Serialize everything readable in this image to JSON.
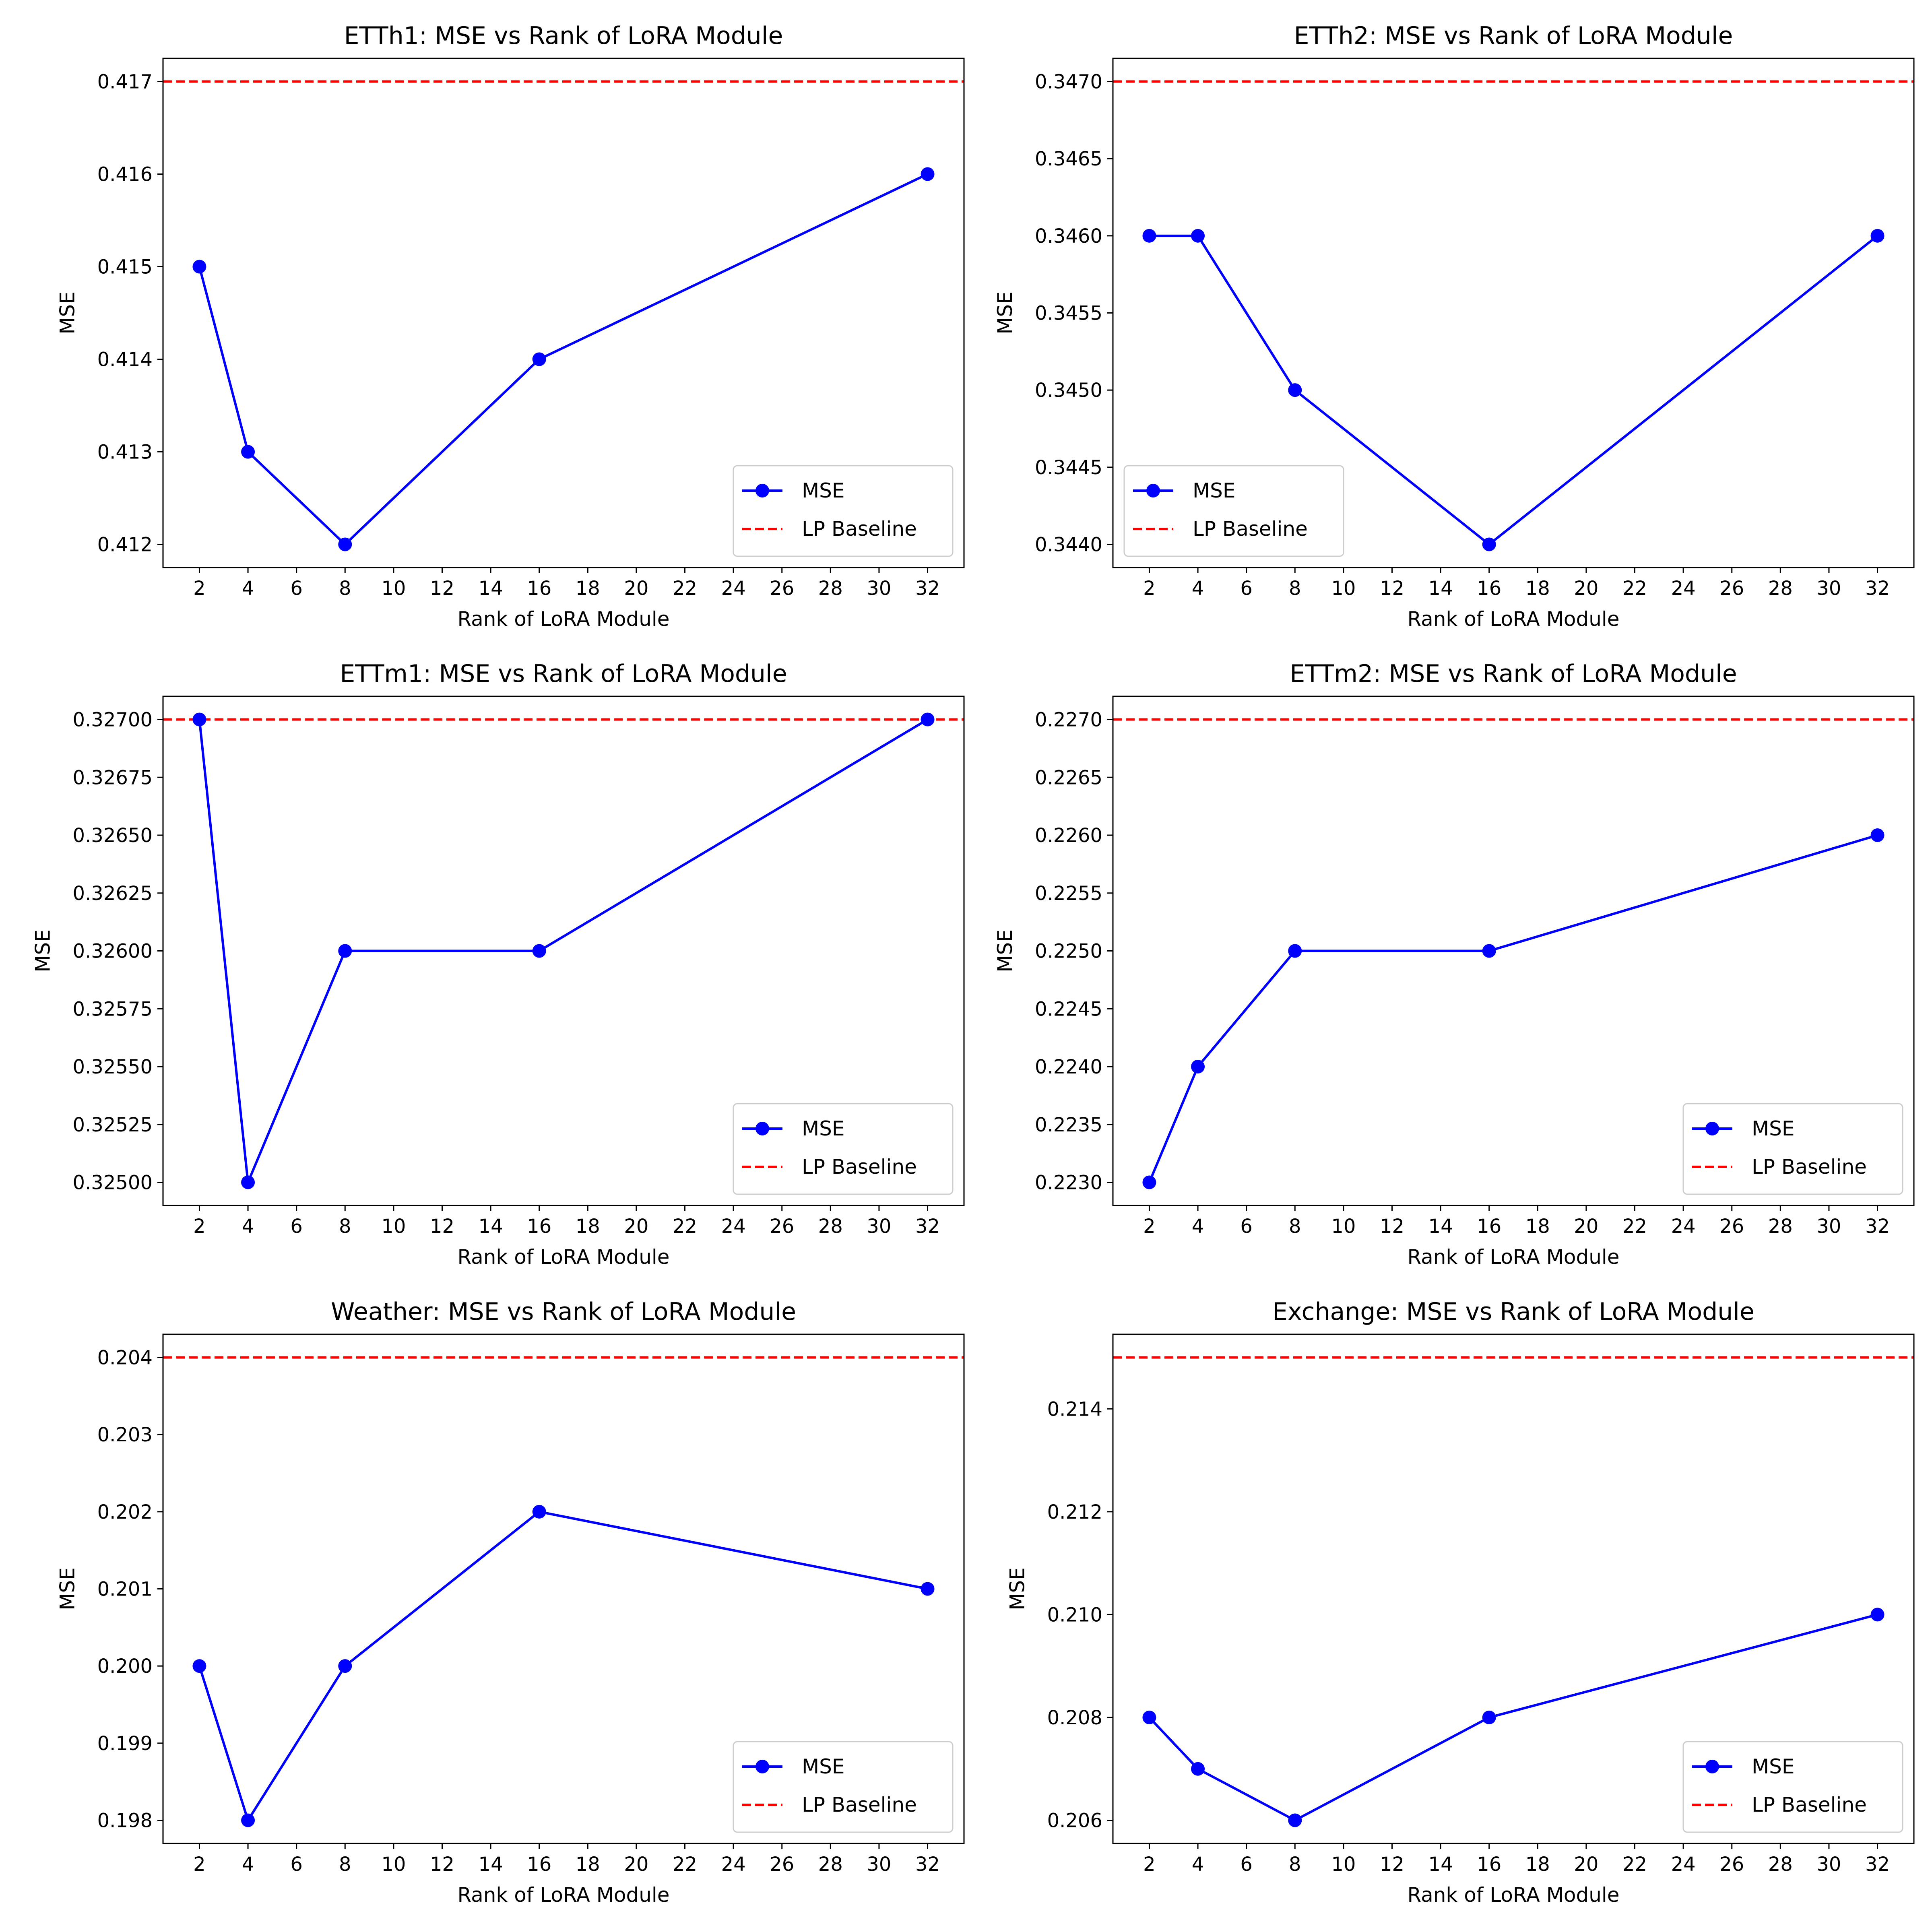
{
  "legend": {
    "mse_label": "MSE",
    "baseline_label": "LP Baseline"
  },
  "colors": {
    "series": "#0000ff",
    "baseline": "#ff0000",
    "axes": "#000000",
    "background": "#ffffff",
    "legend_border": "#cccccc"
  },
  "chart_data": [
    {
      "type": "line",
      "title": "ETTh1: MSE vs Rank of LoRA Module",
      "xlabel": "Rank of LoRA Module",
      "ylabel": "MSE",
      "x": [
        2,
        4,
        8,
        16,
        32
      ],
      "series": [
        {
          "name": "MSE",
          "values": [
            0.415,
            0.413,
            0.412,
            0.414,
            0.416
          ]
        }
      ],
      "baseline": {
        "name": "LP Baseline",
        "value": 0.417
      },
      "xticks": [
        2,
        4,
        6,
        8,
        10,
        12,
        14,
        16,
        18,
        20,
        22,
        24,
        26,
        28,
        30,
        32
      ],
      "yticks": [
        "0.412",
        "0.413",
        "0.414",
        "0.415",
        "0.416",
        "0.417"
      ],
      "xlim": [
        0.5,
        33.5
      ],
      "ylim": [
        0.41175,
        0.41725
      ],
      "legend_position": "lower right"
    },
    {
      "type": "line",
      "title": "ETTh2: MSE vs Rank of LoRA Module",
      "xlabel": "Rank of LoRA Module",
      "ylabel": "MSE",
      "x": [
        2,
        4,
        8,
        16,
        32
      ],
      "series": [
        {
          "name": "MSE",
          "values": [
            0.346,
            0.346,
            0.345,
            0.344,
            0.346
          ]
        }
      ],
      "baseline": {
        "name": "LP Baseline",
        "value": 0.347
      },
      "xticks": [
        2,
        4,
        6,
        8,
        10,
        12,
        14,
        16,
        18,
        20,
        22,
        24,
        26,
        28,
        30,
        32
      ],
      "yticks": [
        "0.3440",
        "0.3445",
        "0.3450",
        "0.3455",
        "0.3460",
        "0.3465",
        "0.3470"
      ],
      "xlim": [
        0.5,
        33.5
      ],
      "ylim": [
        0.34385,
        0.34715
      ],
      "legend_position": "lower left"
    },
    {
      "type": "line",
      "title": "ETTm1: MSE vs Rank of LoRA Module",
      "xlabel": "Rank of LoRA Module",
      "ylabel": "MSE",
      "x": [
        2,
        4,
        8,
        16,
        32
      ],
      "series": [
        {
          "name": "MSE",
          "values": [
            0.327,
            0.325,
            0.326,
            0.326,
            0.327
          ]
        }
      ],
      "baseline": {
        "name": "LP Baseline",
        "value": 0.327
      },
      "xticks": [
        2,
        4,
        6,
        8,
        10,
        12,
        14,
        16,
        18,
        20,
        22,
        24,
        26,
        28,
        30,
        32
      ],
      "yticks": [
        "0.32500",
        "0.32525",
        "0.32550",
        "0.32575",
        "0.32600",
        "0.32625",
        "0.32650",
        "0.32675",
        "0.32700"
      ],
      "xlim": [
        0.5,
        33.5
      ],
      "ylim": [
        0.3249,
        0.3271
      ],
      "legend_position": "lower right"
    },
    {
      "type": "line",
      "title": "ETTm2: MSE vs Rank of LoRA Module",
      "xlabel": "Rank of LoRA Module",
      "ylabel": "MSE",
      "x": [
        2,
        4,
        8,
        16,
        32
      ],
      "series": [
        {
          "name": "MSE",
          "values": [
            0.223,
            0.224,
            0.225,
            0.225,
            0.226
          ]
        }
      ],
      "baseline": {
        "name": "LP Baseline",
        "value": 0.227
      },
      "xticks": [
        2,
        4,
        6,
        8,
        10,
        12,
        14,
        16,
        18,
        20,
        22,
        24,
        26,
        28,
        30,
        32
      ],
      "yticks": [
        "0.2230",
        "0.2235",
        "0.2240",
        "0.2245",
        "0.2250",
        "0.2255",
        "0.2260",
        "0.2265",
        "0.2270"
      ],
      "xlim": [
        0.5,
        33.5
      ],
      "ylim": [
        0.2228,
        0.2272
      ],
      "legend_position": "lower right"
    },
    {
      "type": "line",
      "title": "Weather: MSE vs Rank of LoRA Module",
      "xlabel": "Rank of LoRA Module",
      "ylabel": "MSE",
      "x": [
        2,
        4,
        8,
        16,
        32
      ],
      "series": [
        {
          "name": "MSE",
          "values": [
            0.2,
            0.198,
            0.2,
            0.202,
            0.201
          ]
        }
      ],
      "baseline": {
        "name": "LP Baseline",
        "value": 0.204
      },
      "xticks": [
        2,
        4,
        6,
        8,
        10,
        12,
        14,
        16,
        18,
        20,
        22,
        24,
        26,
        28,
        30,
        32
      ],
      "yticks": [
        "0.198",
        "0.199",
        "0.200",
        "0.201",
        "0.202",
        "0.203",
        "0.204"
      ],
      "xlim": [
        0.5,
        33.5
      ],
      "ylim": [
        0.1977,
        0.2043
      ],
      "legend_position": "lower right"
    },
    {
      "type": "line",
      "title": "Exchange: MSE vs Rank of LoRA Module",
      "xlabel": "Rank of LoRA Module",
      "ylabel": "MSE",
      "x": [
        2,
        4,
        8,
        16,
        32
      ],
      "series": [
        {
          "name": "MSE",
          "values": [
            0.208,
            0.207,
            0.206,
            0.208,
            0.21
          ]
        }
      ],
      "baseline": {
        "name": "LP Baseline",
        "value": 0.215
      },
      "xticks": [
        2,
        4,
        6,
        8,
        10,
        12,
        14,
        16,
        18,
        20,
        22,
        24,
        26,
        28,
        30,
        32
      ],
      "yticks": [
        "0.206",
        "0.208",
        "0.210",
        "0.212",
        "0.214"
      ],
      "xlim": [
        0.5,
        33.5
      ],
      "ylim": [
        0.20555,
        0.21545
      ],
      "legend_position": "lower right"
    }
  ]
}
